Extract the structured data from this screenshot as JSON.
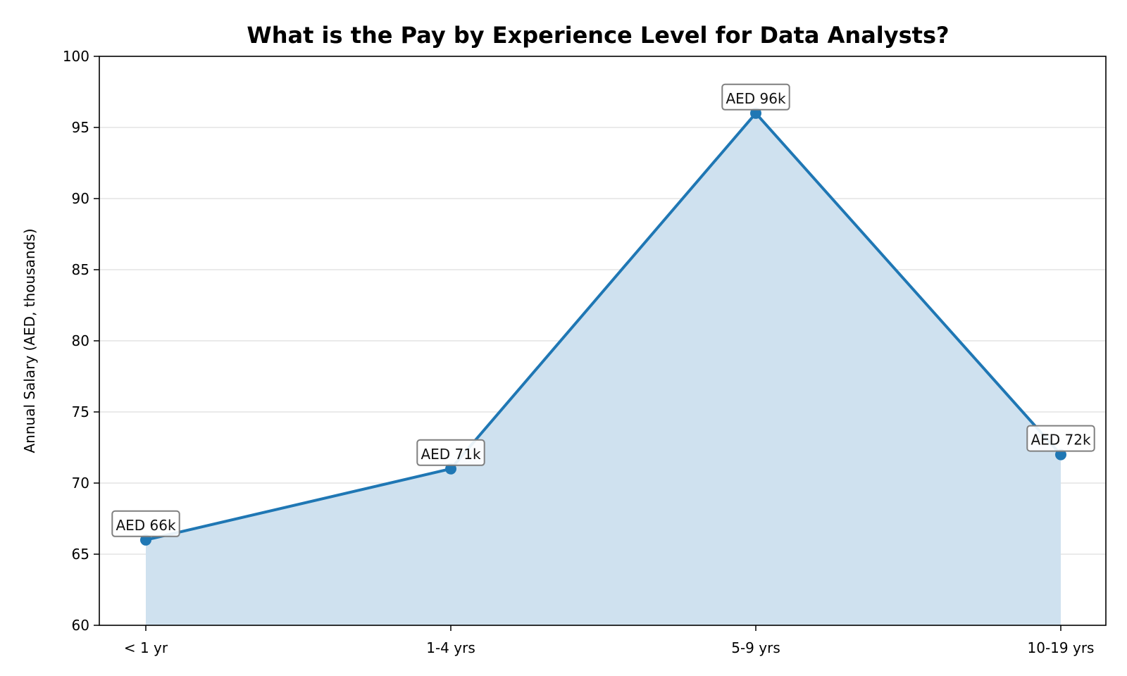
{
  "chart_data": {
    "type": "area",
    "title": "What is the Pay by Experience Level for Data Analysts?",
    "xlabel": "",
    "ylabel": "Annual Salary (AED, thousands)",
    "categories": [
      "< 1 yr",
      "1-4 yrs",
      "5-9 yrs",
      "10-19 yrs"
    ],
    "series": [
      {
        "values": [
          66,
          71,
          96,
          72
        ],
        "data_labels": [
          "AED 66k",
          "AED 71k",
          "AED 96k",
          "AED 72k"
        ],
        "color": "#1f77b4",
        "fill_color": "#cfe1ef"
      }
    ],
    "ylim": [
      60,
      100
    ],
    "yticks": [
      60,
      65,
      70,
      75,
      80,
      85,
      90,
      95,
      100
    ],
    "grid": "horizontal",
    "legend": "none"
  }
}
